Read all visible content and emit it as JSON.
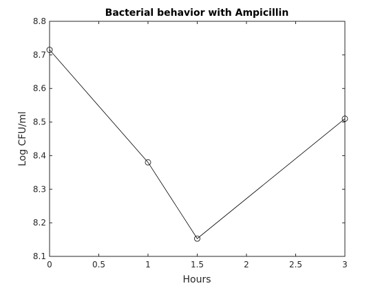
{
  "chart_data": {
    "type": "line",
    "title": "Bacterial behavior with Ampicillin",
    "xlabel": "Hours",
    "ylabel": "Log CFU/ml",
    "xlim": [
      0,
      3
    ],
    "ylim": [
      8.1,
      8.8
    ],
    "xticks": [
      "0",
      "0.5",
      "1",
      "1.5",
      "2",
      "2.5",
      "3"
    ],
    "yticks": [
      "8.1",
      "8.2",
      "8.3",
      "8.4",
      "8.5",
      "8.6",
      "8.7",
      "8.8"
    ],
    "grid": false,
    "marker": "circle",
    "line_color": "#000000",
    "series": [
      {
        "x": [
          0,
          1,
          1.5,
          3
        ],
        "y": [
          8.715,
          8.38,
          8.153,
          8.51
        ]
      }
    ]
  }
}
